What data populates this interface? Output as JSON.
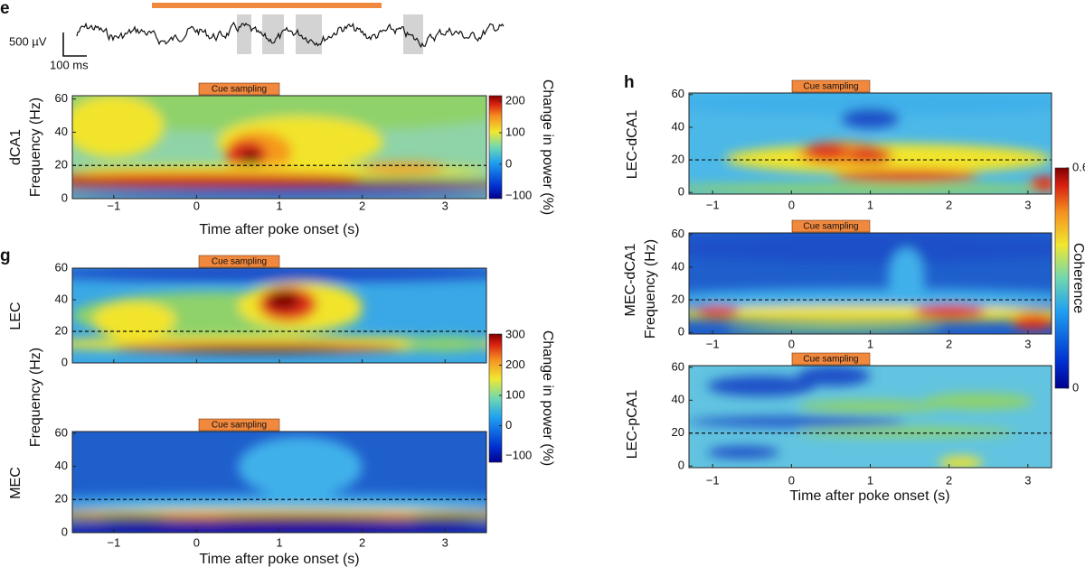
{
  "panel_e": {
    "label": "e",
    "scale_voltage": "500 µV",
    "scale_time": "100 ms",
    "heatmap": {
      "name": "dCA1",
      "cue": "Cue sampling",
      "xlim": [
        -1.5,
        3.5
      ],
      "ylim": [
        0,
        62
      ],
      "xticks": [
        {
          "value": -1,
          "label": "−1"
        },
        0,
        1,
        2,
        3
      ],
      "yticks": [
        0,
        20,
        40,
        60
      ],
      "dashed_line": 20
    },
    "y_axis_label": "Frequency (Hz)",
    "x_axis_label": "Time after poke onset (s)",
    "colorbar": {
      "label": "Change in power (%)",
      "lim": [
        -109,
        217
      ],
      "ticks": [
        {
          "value": -100,
          "label": "−100"
        },
        0,
        100,
        200
      ]
    }
  },
  "panel_g": {
    "label": "g",
    "heatmaps": [
      {
        "name": "LEC",
        "cue": "Cue sampling",
        "xlim": [
          -1.5,
          3.5
        ],
        "ylim": [
          0,
          60
        ],
        "xticks": [
          {
            "value": -1,
            "label": "−1"
          },
          0,
          1,
          2,
          3
        ],
        "yticks": [
          0,
          20,
          40,
          60
        ],
        "dashed_line": 20
      },
      {
        "name": "MEC",
        "cue": "Cue sampling",
        "xlim": [
          -1.5,
          3.5
        ],
        "ylim": [
          0,
          61
        ],
        "xticks": [
          {
            "value": -1,
            "label": "−1"
          },
          0,
          1,
          2,
          3
        ],
        "yticks": [
          0,
          20,
          40,
          60
        ],
        "dashed_line": 20
      }
    ],
    "y_axis_label": "Frequency (Hz)",
    "x_axis_label": "Time after poke onset (s)",
    "colorbar": {
      "label": "Change in power (%)",
      "lim": [
        -121,
        303
      ],
      "ticks": [
        {
          "value": -100,
          "label": "−100"
        },
        0,
        100,
        200,
        300
      ]
    }
  },
  "panel_h": {
    "label": "h",
    "heatmaps": [
      {
        "name": "LEC-dCA1",
        "cue": "Cue sampling",
        "xlim": [
          -1.3,
          3.3
        ],
        "ylim": [
          -1,
          61
        ],
        "xticks": [
          {
            "value": -1,
            "label": "−1"
          },
          0,
          1,
          2,
          3
        ],
        "yticks": [
          0,
          20,
          40,
          60
        ],
        "dashed_line": 20
      },
      {
        "name": "MEC-dCA1",
        "cue": "Cue sampling",
        "xlim": [
          -1.3,
          3.3
        ],
        "ylim": [
          -1,
          61
        ],
        "xticks": [
          {
            "value": -1,
            "label": "−1"
          },
          0,
          1,
          2,
          3
        ],
        "yticks": [
          0,
          20,
          40,
          60
        ],
        "dashed_line": 20
      },
      {
        "name": "LEC-pCA1",
        "cue": "Cue sampling",
        "xlim": [
          -1.3,
          3.3
        ],
        "ylim": [
          -1,
          61
        ],
        "xticks": [
          {
            "value": -1,
            "label": "−1"
          },
          0,
          1,
          2,
          3
        ],
        "yticks": [
          0,
          20,
          40,
          60
        ],
        "dashed_line": 20
      }
    ],
    "y_axis_label": "Frequency (Hz)",
    "x_axis_label": "Time after poke onset (s)",
    "colorbar": {
      "label": "Coherence",
      "lim": [
        0,
        0.6
      ],
      "ticks": [
        0,
        0.6
      ]
    }
  }
}
